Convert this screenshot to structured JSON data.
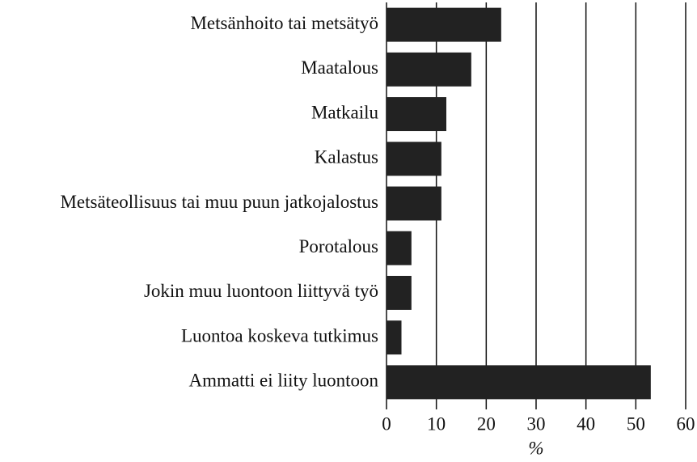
{
  "chart_data": {
    "type": "barh",
    "categories": [
      "Metsänhoito tai metsätyö",
      "Maatalous",
      "Matkailu",
      "Kalastus",
      "Metsäteollisuus tai muu puun jatkojalostus",
      "Porotalous",
      "Jokin muu luontoon liittyvä työ",
      "Luontoa koskeva tutkimus",
      "Ammatti ei liity luontoon"
    ],
    "values": [
      23,
      17,
      12,
      11,
      11,
      5,
      5,
      3,
      53
    ],
    "color": "#222222",
    "xlabel": "%",
    "xlim": [
      0,
      60
    ],
    "xticks": [
      0,
      10,
      20,
      30,
      40,
      50,
      60
    ],
    "grid": true
  }
}
